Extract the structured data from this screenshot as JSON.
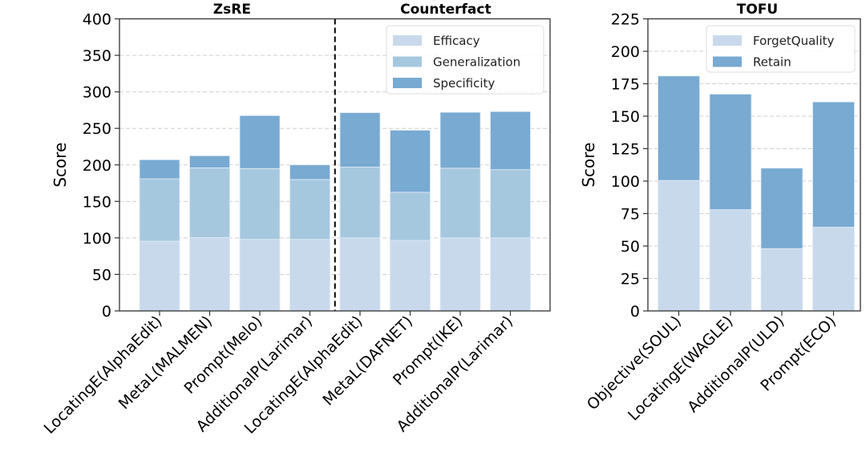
{
  "chart_data": [
    {
      "type": "bar",
      "stacked": true,
      "title_groups": [
        "ZsRE",
        "Counterfact"
      ],
      "ylabel": "Score",
      "ylim": [
        0,
        400
      ],
      "yticks": [
        0,
        50,
        100,
        150,
        200,
        250,
        300,
        350,
        400
      ],
      "grid": true,
      "legend_position": "top-right",
      "categories": [
        "LocatingE(AlphaEdit)",
        "MetaL(MALMEN)",
        "Prompt(Melo)",
        "AdditionalP(Larimar)",
        "LocatingE(AlphaEdit)",
        "MetaL(DAFNET)",
        "Prompt(IKE)",
        "AdditionalP(Larimar)"
      ],
      "group_split_after_index": 3,
      "series": [
        {
          "name": "Efficacy",
          "color": "#c8d9ec",
          "values": [
            95.5,
            100.5,
            98,
            98,
            100,
            96.5,
            100,
            100
          ]
        },
        {
          "name": "Generalization",
          "color": "#a6c8df",
          "values": [
            85.5,
            95.5,
            97,
            82,
            97,
            66,
            95.5,
            93.5
          ]
        },
        {
          "name": "Specificity",
          "color": "#78aad2",
          "values": [
            26,
            16.5,
            72.5,
            20,
            74.5,
            85,
            76.5,
            79.5
          ]
        }
      ]
    },
    {
      "type": "bar",
      "stacked": true,
      "title": "TOFU",
      "ylabel": "Score",
      "ylim": [
        0,
        225
      ],
      "yticks": [
        0,
        25,
        50,
        75,
        100,
        125,
        150,
        175,
        200,
        225
      ],
      "grid": true,
      "legend_position": "top-right",
      "categories": [
        "Objective(SOUL)",
        "LocatingE(WAGLE)",
        "AdditionalP(ULD)",
        "Prompt(ECO)"
      ],
      "series": [
        {
          "name": "ForgetQuality",
          "color": "#c8d9ec",
          "values": [
            100.5,
            78,
            48,
            64.5
          ]
        },
        {
          "name": "Retain",
          "color": "#78aad2",
          "values": [
            80.5,
            89,
            62,
            96.5
          ]
        }
      ]
    }
  ]
}
